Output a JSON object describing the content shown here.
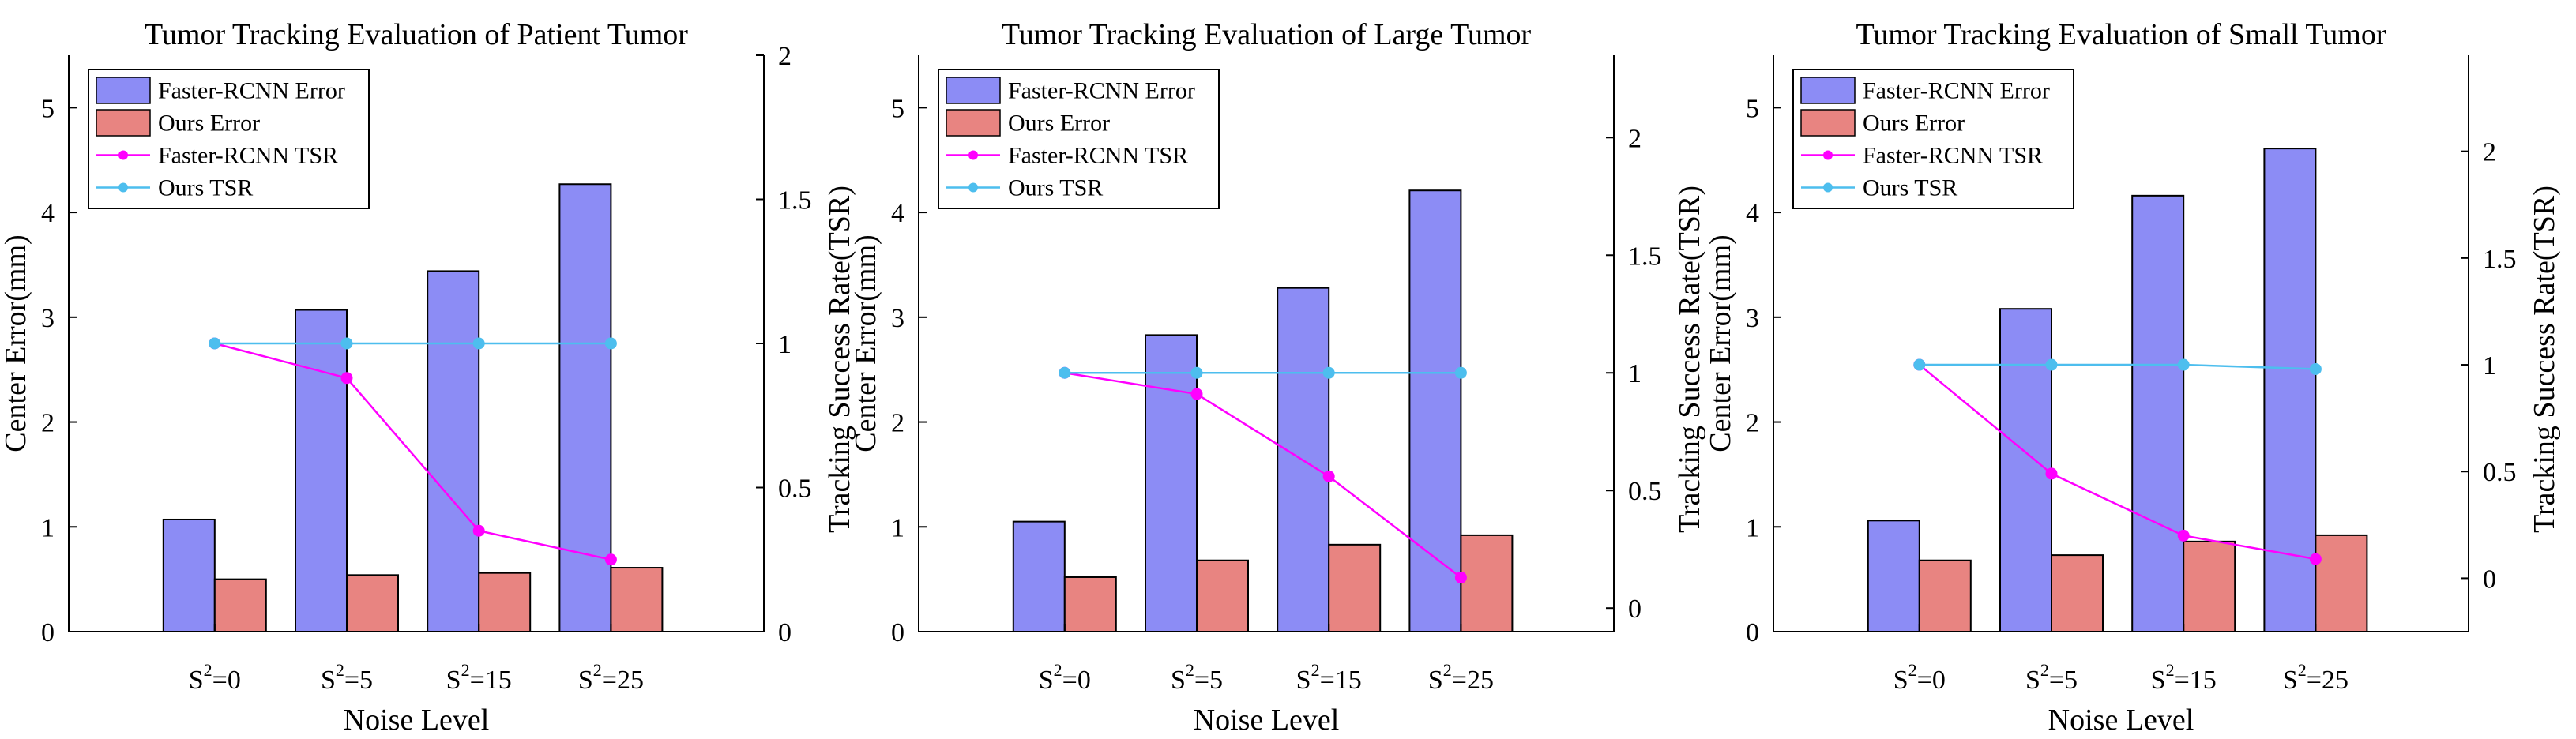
{
  "chart_data": [
    {
      "type": "bar+line",
      "title": "Tumor Tracking Evaluation of Patient Tumor",
      "xlabel": "Noise Level",
      "ylabel": "Center Error(mm)",
      "y2label": "Tracking Success Rate(TSR)",
      "categories": [
        "0",
        "5",
        "15",
        "25"
      ],
      "category_prefix": "S",
      "category_sup": "2",
      "ylim": [
        0,
        5.5
      ],
      "yticks": [
        0,
        1,
        2,
        3,
        4,
        5
      ],
      "y2lim": [
        0,
        2
      ],
      "y2ticks": [
        "0",
        "0.5",
        "1",
        "1.5",
        "2"
      ],
      "bars": [
        {
          "name": "Faster-RCNN Error",
          "color": "#8c8cf5",
          "values": [
            1.07,
            3.07,
            3.44,
            4.27
          ]
        },
        {
          "name": "Ours Error",
          "color": "#e88481",
          "values": [
            0.5,
            0.54,
            0.56,
            0.61
          ]
        }
      ],
      "lines": [
        {
          "name": "Faster-RCNN TSR",
          "color": "#ff00ff",
          "values": [
            1.0,
            0.88,
            0.35,
            0.25
          ]
        },
        {
          "name": "Ours TSR",
          "color": "#4dbeee",
          "values": [
            1.0,
            1.0,
            1.0,
            1.0
          ]
        }
      ],
      "legend_position": "top-left"
    },
    {
      "type": "bar+line",
      "title": "Tumor Tracking Evaluation of Large Tumor",
      "xlabel": "Noise Level",
      "ylabel": "Center Error(mm)",
      "y2label": "Tracking Success Rate(TSR)",
      "categories": [
        "0",
        "5",
        "15",
        "25"
      ],
      "category_prefix": "S",
      "category_sup": "2",
      "ylim": [
        0,
        5.5
      ],
      "yticks": [
        0,
        1,
        2,
        3,
        4,
        5
      ],
      "y2lim": [
        -0.1,
        2.35
      ],
      "y2ticks": [
        "0",
        "0.5",
        "1",
        "1.5",
        "2"
      ],
      "bars": [
        {
          "name": "Faster-RCNN Error",
          "color": "#8c8cf5",
          "values": [
            1.05,
            2.83,
            3.28,
            4.21
          ]
        },
        {
          "name": "Ours Error",
          "color": "#e88481",
          "values": [
            0.52,
            0.68,
            0.83,
            0.92
          ]
        }
      ],
      "lines": [
        {
          "name": "Faster-RCNN TSR",
          "color": "#ff00ff",
          "values": [
            1.0,
            0.91,
            0.56,
            0.13
          ]
        },
        {
          "name": "Ours TSR",
          "color": "#4dbeee",
          "values": [
            1.0,
            1.0,
            1.0,
            1.0
          ]
        }
      ],
      "legend_position": "top-left"
    },
    {
      "type": "bar+line",
      "title": "Tumor Tracking Evaluation of Small Tumor",
      "xlabel": "Noise Level",
      "ylabel": "Center Error(mm)",
      "y2label": "Tracking Success Rate(TSR)",
      "categories": [
        "0",
        "5",
        "15",
        "25"
      ],
      "category_prefix": "S",
      "category_sup": "2",
      "ylim": [
        0,
        5.5
      ],
      "yticks": [
        0,
        1,
        2,
        3,
        4,
        5
      ],
      "y2lim": [
        -0.25,
        2.45
      ],
      "y2ticks": [
        "0",
        "0.5",
        "1",
        "1.5",
        "2"
      ],
      "bars": [
        {
          "name": "Faster-RCNN Error",
          "color": "#8c8cf5",
          "values": [
            1.06,
            3.08,
            4.16,
            4.61
          ]
        },
        {
          "name": "Ours Error",
          "color": "#e88481",
          "values": [
            0.68,
            0.73,
            0.86,
            0.92
          ]
        }
      ],
      "lines": [
        {
          "name": "Faster-RCNN TSR",
          "color": "#ff00ff",
          "values": [
            1.0,
            0.49,
            0.2,
            0.09
          ]
        },
        {
          "name": "Ours TSR",
          "color": "#4dbeee",
          "values": [
            1.0,
            1.0,
            1.0,
            0.98
          ]
        }
      ],
      "legend_position": "top-left"
    }
  ]
}
